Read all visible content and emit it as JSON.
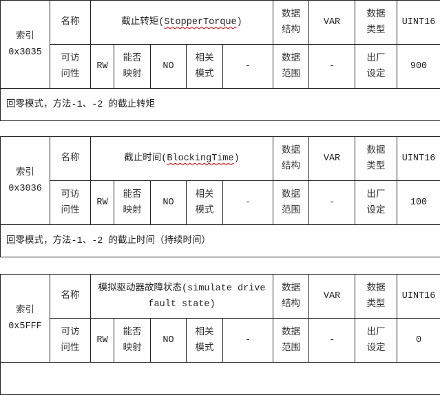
{
  "labels": {
    "index": "索引",
    "name": "名称",
    "data_structure": "数据结构",
    "data_type": "数据类型",
    "access": "可访问性",
    "mappable": "能否映射",
    "related_mode": "相关模式",
    "data_range": "数据范围",
    "default": "出厂设定"
  },
  "tables": [
    {
      "index": "0x3035",
      "name_cn": "截止转矩(",
      "name_en": "StopperTorque",
      "name_close": ")",
      "structure": "VAR",
      "type": "UINT16",
      "access": "RW",
      "mappable": "NO",
      "mode": "-",
      "range": "-",
      "default": "900",
      "description": "回零模式，方法-1、-2 的截止转矩"
    },
    {
      "index": "0x3036",
      "name_cn": "截止时间(",
      "name_en": "BlockingTime",
      "name_close": ")",
      "structure": "VAR",
      "type": "UINT16",
      "access": "RW",
      "mappable": "NO",
      "mode": "-",
      "range": "-",
      "default": "100",
      "description": "回零模式，方法-1、-2 的截止时间（持续时间）"
    },
    {
      "index": "0x5FFF",
      "name_cn": "模拟驱动器故障状态(simulate drive fault state)",
      "name_en": "",
      "name_close": "",
      "structure": "VAR",
      "type": "UINT16",
      "access": "RW",
      "mappable": "NO",
      "mode": "-",
      "range": "-",
      "default": "0",
      "description": ""
    }
  ]
}
